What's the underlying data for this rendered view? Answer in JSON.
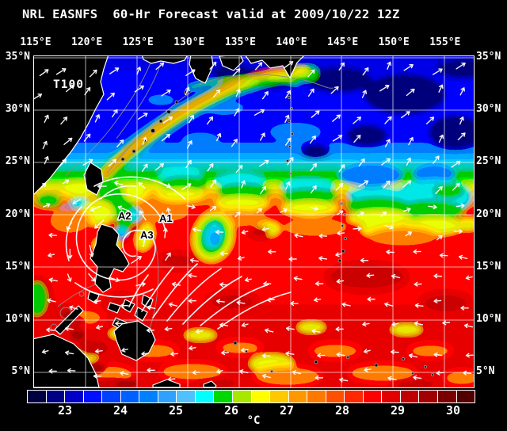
{
  "title": "NRL EASNFS  60-Hr Forecast valid at 2009/10/22 12Z",
  "axes": {
    "lon_labels": [
      "115°E",
      "120°E",
      "125°E",
      "130°E",
      "135°E",
      "140°E",
      "145°E",
      "150°E",
      "155°E"
    ],
    "lat_labels_left": [
      "35°N",
      "30°N",
      "25°N",
      "20°N",
      "15°N",
      "10°N",
      "5°N"
    ],
    "lat_labels_right": [
      "35°N",
      "30°N",
      "25°N",
      "20°N",
      "15°N",
      "10°N",
      "5°N"
    ]
  },
  "annotations": {
    "model_id": "T100",
    "a1": "A1",
    "a2": "A2",
    "a3": "A3"
  },
  "colorbar": {
    "unit": "°C",
    "tick_labels": [
      "23",
      "24",
      "25",
      "26",
      "27",
      "28",
      "29",
      "30"
    ],
    "cell_colors": [
      "#000040",
      "#000085",
      "#0000c8",
      "#0010ff",
      "#0040ff",
      "#0060ff",
      "#0080ff",
      "#30a0ff",
      "#50c0ff",
      "#00ffff",
      "#00d800",
      "#a8e800",
      "#ffff00",
      "#ffc800",
      "#ff9800",
      "#ff7800",
      "#ff5000",
      "#ff2800",
      "#ff0000",
      "#e00000",
      "#c00000",
      "#a00000",
      "#780000",
      "#500000"
    ]
  },
  "colors": {
    "background": "#000000",
    "land": "#000000",
    "coastline": "#ffffff",
    "grid": "#ffffff",
    "bathymetry_contour": "#8c8c8c",
    "text": "#ffffff",
    "wind_vector": "#ffffff"
  }
}
